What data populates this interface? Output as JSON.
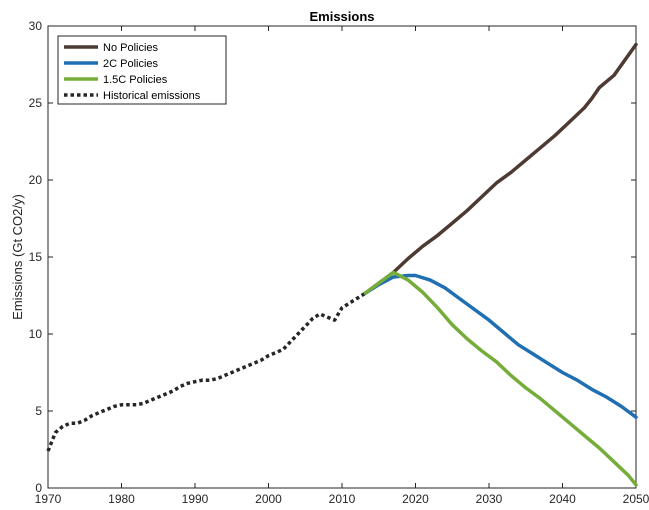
{
  "chart_data": {
    "type": "line",
    "title": "Emissions",
    "xlabel": "",
    "ylabel": "Emissions (Gt CO2/y)",
    "xlim": [
      1970,
      2050
    ],
    "ylim": [
      0,
      30
    ],
    "xticks": [
      1970,
      1980,
      1990,
      2000,
      2010,
      2020,
      2030,
      2040,
      2050
    ],
    "yticks": [
      0,
      5,
      10,
      15,
      20,
      25,
      30
    ],
    "grid": false,
    "legend_position": "top-left",
    "series": [
      {
        "name": "No Policies",
        "color": "#4d3a33",
        "style": "solid",
        "x": [
          2013,
          2015,
          2017,
          2019,
          2021,
          2023,
          2025,
          2027,
          2029,
          2031,
          2033,
          2035,
          2037,
          2039,
          2041,
          2043,
          2044,
          2045,
          2047,
          2050
        ],
        "y": [
          12.6,
          13.3,
          14.0,
          14.9,
          15.7,
          16.4,
          17.2,
          18.0,
          18.9,
          19.8,
          20.5,
          21.3,
          22.1,
          22.9,
          23.8,
          24.7,
          25.3,
          26.0,
          26.8,
          28.8
        ]
      },
      {
        "name": "2C Policies",
        "color": "#1f6fb2",
        "style": "solid",
        "x": [
          2013,
          2015,
          2017,
          2019,
          2020,
          2022,
          2024,
          2026,
          2028,
          2030,
          2032,
          2034,
          2036,
          2038,
          2040,
          2042,
          2044,
          2046,
          2048,
          2050
        ],
        "y": [
          12.6,
          13.2,
          13.7,
          13.8,
          13.8,
          13.5,
          13.0,
          12.3,
          11.6,
          10.9,
          10.1,
          9.3,
          8.7,
          8.1,
          7.5,
          7.0,
          6.4,
          5.9,
          5.3,
          4.6
        ]
      },
      {
        "name": "1.5C Policies",
        "color": "#76ad3a",
        "style": "solid",
        "x": [
          2013,
          2015,
          2017,
          2019,
          2021,
          2023,
          2025,
          2027,
          2029,
          2031,
          2033,
          2035,
          2037,
          2039,
          2041,
          2043,
          2045,
          2047,
          2049,
          2050
        ],
        "y": [
          12.6,
          13.3,
          14.0,
          13.5,
          12.7,
          11.7,
          10.6,
          9.7,
          8.9,
          8.2,
          7.3,
          6.5,
          5.8,
          5.0,
          4.2,
          3.4,
          2.6,
          1.7,
          0.8,
          0.2
        ]
      },
      {
        "name": "Historical emissions",
        "color": "#262626",
        "style": "dotted",
        "x": [
          1970,
          1971,
          1972,
          1973,
          1974,
          1975,
          1976,
          1977,
          1978,
          1979,
          1980,
          1981,
          1982,
          1983,
          1984,
          1985,
          1986,
          1987,
          1988,
          1989,
          1990,
          1991,
          1992,
          1993,
          1994,
          1995,
          1996,
          1997,
          1998,
          1999,
          2000,
          2001,
          2002,
          2003,
          2004,
          2005,
          2006,
          2007,
          2008,
          2009,
          2010,
          2011,
          2012,
          2013
        ],
        "y": [
          2.4,
          3.6,
          4.0,
          4.2,
          4.2,
          4.4,
          4.7,
          4.9,
          5.1,
          5.3,
          5.4,
          5.4,
          5.4,
          5.5,
          5.7,
          5.9,
          6.1,
          6.3,
          6.6,
          6.8,
          6.9,
          7.0,
          7.0,
          7.1,
          7.3,
          7.5,
          7.7,
          7.9,
          8.1,
          8.3,
          8.6,
          8.8,
          9.0,
          9.5,
          10.0,
          10.5,
          11.0,
          11.3,
          11.1,
          10.9,
          11.7,
          12.0,
          12.3,
          12.6
        ]
      }
    ]
  }
}
